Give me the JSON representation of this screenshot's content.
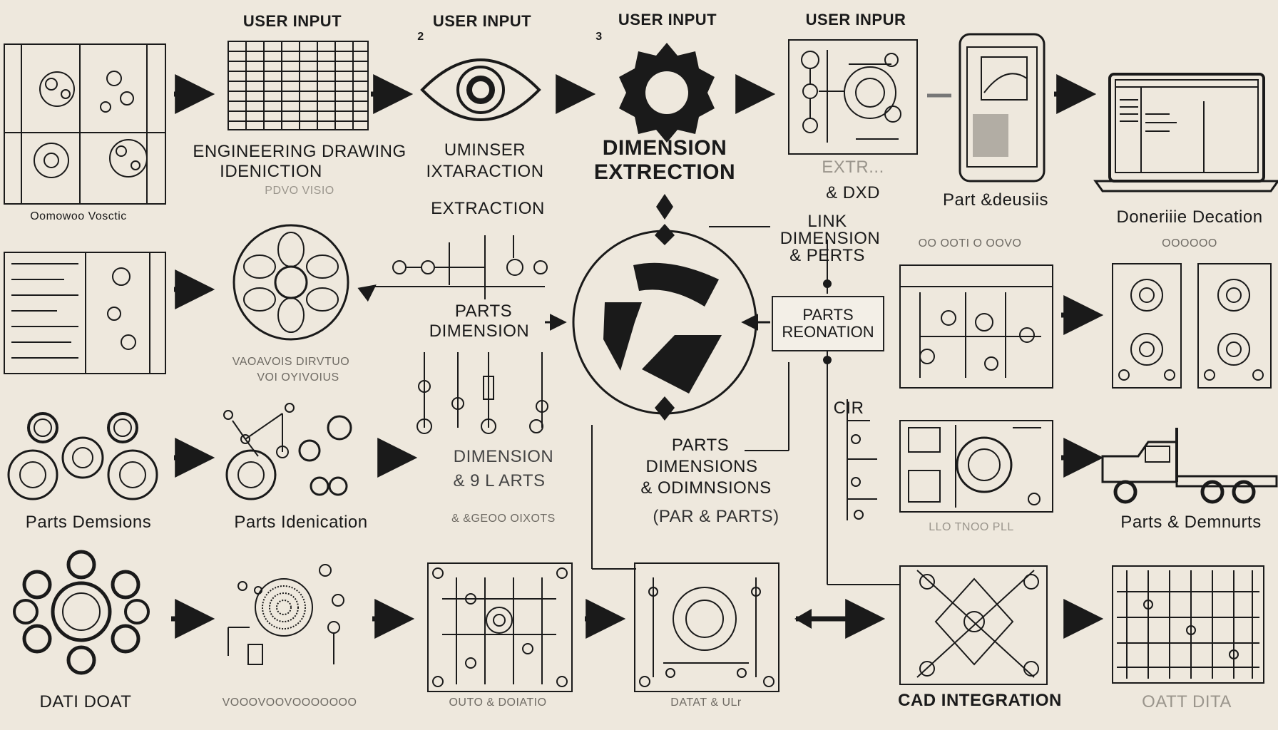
{
  "headers": {
    "user_input_1": "USER INPUT",
    "user_input_2": "USER INPUT",
    "user_input_3": "USER INPUT",
    "user_input_4": "USER INPUR"
  },
  "markers": {
    "m1": "2",
    "m2": "3"
  },
  "labels": {
    "engineering_1": "ENGINEERING DRAWING",
    "engineering_2": "IDENICTION",
    "engineering_faint": "PDVO    VISIO",
    "uminser_1": "UMINSER",
    "uminser_2": "IXTARACTION",
    "extraction": "EXTRACTION",
    "dimension_extraction_1": "DIMENSION",
    "dimension_extraction_2": "EXTRECTION",
    "dxd": "& DXD",
    "dxd_faint": "EXTR...",
    "part_details": "Part &deusiis",
    "doneiine": "Doneriiie Decation",
    "row1_left_caption": "Oomowoo Vosctic",
    "link_1": "LINK",
    "link_2": "DIMENSION",
    "link_3": "& PERTS",
    "parts_recognition_1": "PARTS",
    "parts_recognition_2": "REONATION",
    "parts_dimension_1": "PARTS",
    "parts_dimension_2": "DIMENSION",
    "mid_small_1": "VAOAVOIS DIRVTUO",
    "mid_small_2": "VOI OYIVOIUS",
    "right_small_1": "OO OOTI O OOVO",
    "right_small_2": "OOOOOO",
    "dimension_parts_1": "DIMENSION",
    "dimension_parts_2": "&  9 L ARTS",
    "dimension_parts_small": "& &GEOO OIXOTS",
    "parts_dimensions_c1": "PARTS",
    "parts_dimensions_c2": "DIMENSIONS",
    "parts_dimensions_c3": "& ODIMNSIONS",
    "par_parts": "(PAR & PARTS)",
    "ocr": "CIR",
    "parts_demsions": "Parts Demsions",
    "parts_idenication": "Parts Idenication",
    "row3_right_small": "LLO TNOO PLL",
    "parts_demnurts": "Parts & Demnurts",
    "datl_doat": "DATI DOAT",
    "row4_small_2": "VOOOVOOVOOOOOOO",
    "outo_dotatio": "OUTO & DOIATIO",
    "datat_ulr": "DATAT & ULr",
    "cad_integration": "CAD INTEGRATION",
    "oatt_dita": "OATT DITA"
  },
  "colors": {
    "background": "#eee8dd",
    "ink": "#1a1a1a",
    "faint": "#9a958c"
  }
}
